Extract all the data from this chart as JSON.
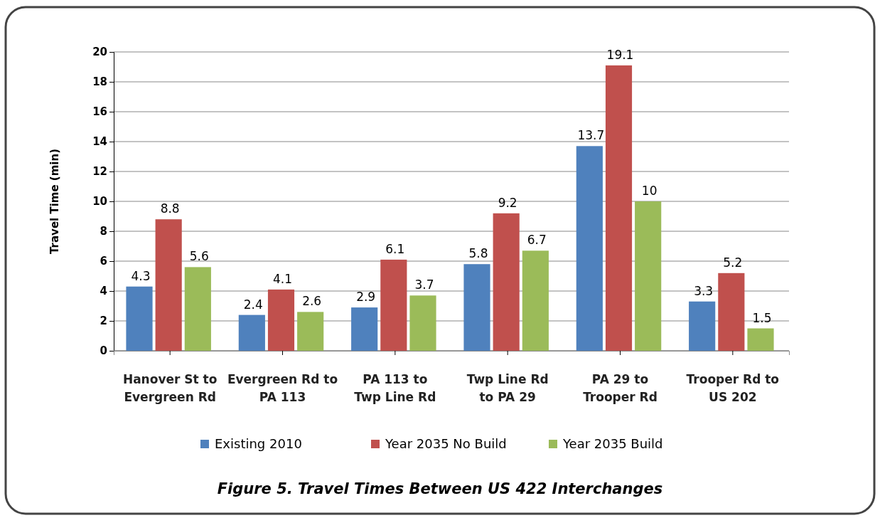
{
  "chart_data": {
    "type": "bar",
    "ylabel": "Travel Time (min)",
    "categories": [
      "Hanover St to Evergreen Rd",
      "Evergreen Rd to PA 113",
      "PA 113 to Twp Line Rd",
      "Twp Line Rd to PA 29",
      "PA 29 to Trooper Rd",
      "Trooper Rd to US 202"
    ],
    "series": [
      {
        "name": "Existing 2010",
        "color": "#4f81bd",
        "values": [
          4.3,
          2.4,
          2.9,
          5.8,
          13.7,
          3.3
        ]
      },
      {
        "name": "Year 2035 No Build",
        "color": "#c0504d",
        "values": [
          8.8,
          4.1,
          6.1,
          9.2,
          19.1,
          5.2
        ]
      },
      {
        "name": "Year 2035 Build",
        "color": "#9bbb59",
        "values": [
          5.6,
          2.6,
          3.7,
          6.7,
          10,
          1.5
        ]
      }
    ],
    "ylim": [
      0,
      20
    ],
    "yticks": [
      0,
      2,
      4,
      6,
      8,
      10,
      12,
      14,
      16,
      18,
      20
    ],
    "grid": "y",
    "legend": "bottom",
    "data_labels": true,
    "annotations": [
      "Figure 5. Travel Times Between US 422 Interchanges"
    ]
  }
}
